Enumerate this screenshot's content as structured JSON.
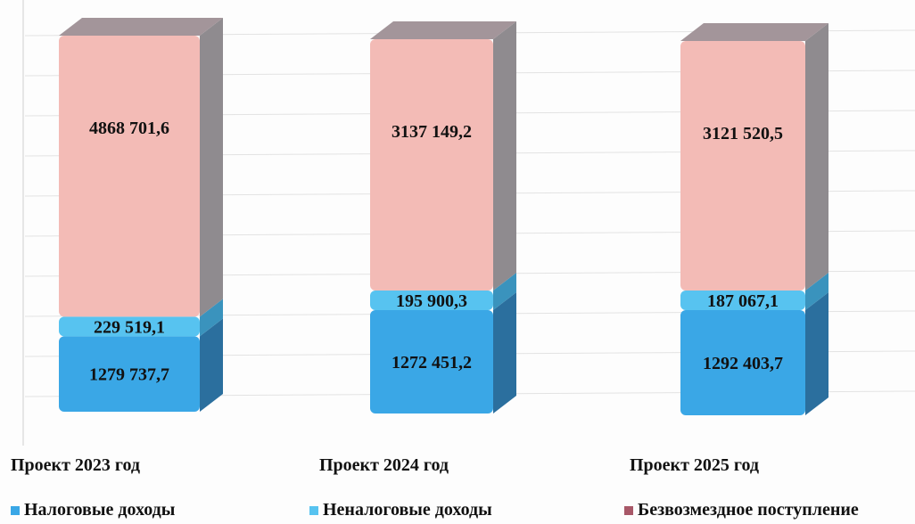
{
  "chart_data": {
    "type": "bar",
    "stacked": true,
    "categories": [
      "Проект 2023 год",
      "Проект 2024 год",
      "Проект 2025 год"
    ],
    "series": [
      {
        "name": "Налоговые доходы",
        "color": "#3aa7e6",
        "values": [
          1279737.7,
          1272451.2,
          1292403.7
        ],
        "labels": [
          "1279 737,7",
          "1272 451,2",
          "1292 403,7"
        ]
      },
      {
        "name": "Неналоговые доходы",
        "color": "#57c3f0",
        "values": [
          229519.1,
          195900.3,
          187067.1
        ],
        "labels": [
          "229 519,1",
          "195 900,3",
          "187 067,1"
        ]
      },
      {
        "name": "Безвозмездное поступление",
        "color": "#f3bbb6",
        "values": [
          4868701.6,
          3137149.2,
          3121520.5
        ],
        "labels": [
          "4868 701,6",
          "3137 149,2",
          "3121 520,5"
        ]
      }
    ],
    "grid": true,
    "legend_position": "bottom"
  }
}
